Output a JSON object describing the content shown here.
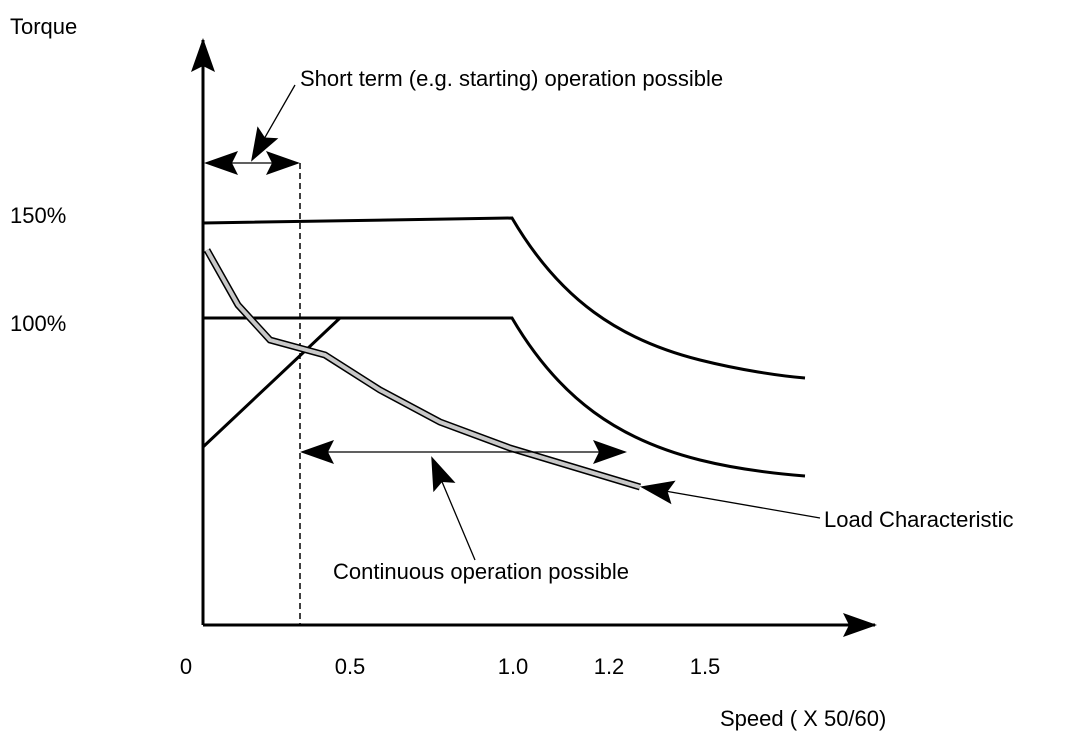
{
  "axes": {
    "y_label": "Torque",
    "x_label": "Speed ( X 50/60)",
    "y_ticks": [
      "150%",
      "100%"
    ],
    "x_ticks": [
      "0",
      "0.5",
      "1.0",
      "1.2",
      "1.5"
    ]
  },
  "annotations": {
    "short_term": "Short term (e.g. starting) operation possible",
    "continuous": "Continuous operation possible",
    "load": "Load Characteristic"
  }
}
